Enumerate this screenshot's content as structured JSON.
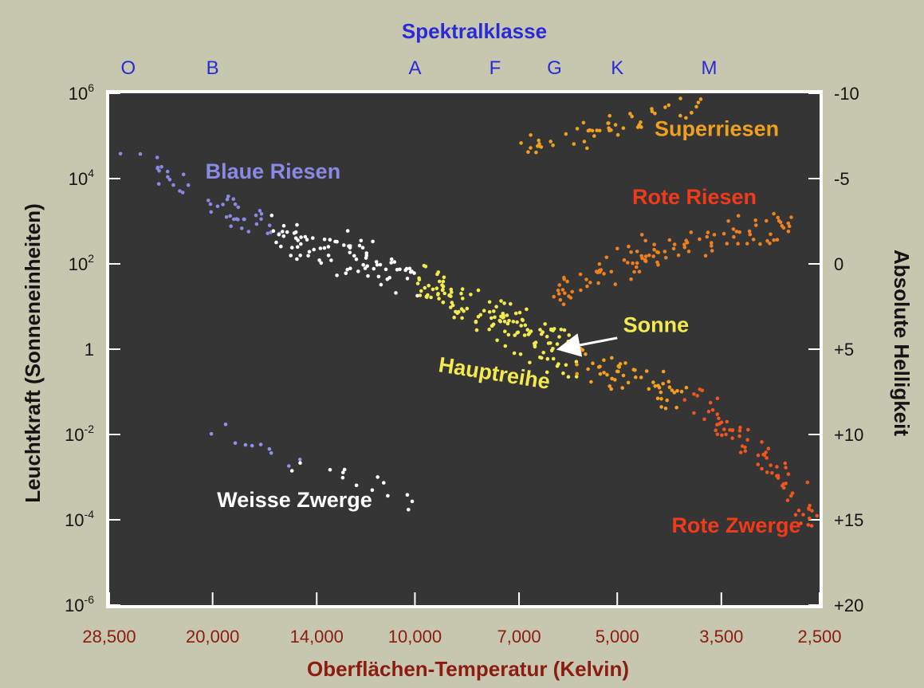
{
  "chart_data": {
    "type": "scatter",
    "title": "Spektralklasse",
    "xlabel": "Oberflächen-Temperatur (Kelvin)",
    "ylabel": "Leuchtkraft (Sonneneinheiten)",
    "y2label": "Absolute Helligkeit",
    "x_scale": "log, reversed",
    "xlim": [
      28500,
      2500
    ],
    "y_scale": "log",
    "ylim": [
      1e-06,
      1000000.0
    ],
    "y2lim": [
      20,
      -10
    ],
    "grid": false,
    "background": "#353535",
    "x_ticks": [
      {
        "value": 28500,
        "label": "28,500"
      },
      {
        "value": 20000,
        "label": "20,000"
      },
      {
        "value": 14000,
        "label": "14,000"
      },
      {
        "value": 10000,
        "label": "10,000"
      },
      {
        "value": 7000,
        "label": "7,000"
      },
      {
        "value": 5000,
        "label": "5,000"
      },
      {
        "value": 3500,
        "label": "3,500"
      },
      {
        "value": 2500,
        "label": "2,500"
      }
    ],
    "y_ticks": [
      {
        "value": 1000000.0,
        "base": "10",
        "exp": "6"
      },
      {
        "value": 10000.0,
        "base": "10",
        "exp": "4"
      },
      {
        "value": 100.0,
        "base": "10",
        "exp": "2"
      },
      {
        "value": 1,
        "base": "1",
        "exp": ""
      },
      {
        "value": 0.01,
        "base": "10",
        "exp": "-2"
      },
      {
        "value": 0.0001,
        "base": "10",
        "exp": "-4"
      },
      {
        "value": 1e-06,
        "base": "10",
        "exp": "-6"
      }
    ],
    "y2_ticks": [
      {
        "value": -10,
        "label": "-10"
      },
      {
        "value": -5,
        "label": "-5"
      },
      {
        "value": 0,
        "label": "0"
      },
      {
        "value": 5,
        "label": "+5"
      },
      {
        "value": 10,
        "label": "+10"
      },
      {
        "value": 15,
        "label": "+15"
      },
      {
        "value": 20,
        "label": "+20"
      }
    ],
    "spectral_classes": [
      {
        "label": "O",
        "temp": 26700
      },
      {
        "label": "B",
        "temp": 20000
      },
      {
        "label": "A",
        "temp": 10000
      },
      {
        "label": "F",
        "temp": 7600
      },
      {
        "label": "G",
        "temp": 6200
      },
      {
        "label": "K",
        "temp": 5000
      },
      {
        "label": "M",
        "temp": 3650
      }
    ],
    "regions": [
      {
        "name": "Superriesen",
        "color": "#f0a020",
        "path": [
          [
            7000,
            30000.0
          ],
          [
            6200,
            70000.0
          ],
          [
            5400,
            130000.0
          ],
          [
            4600,
            250000.0
          ],
          [
            4000,
            500000.0
          ],
          [
            3700,
            600000.0
          ]
        ],
        "spread": 0.4,
        "count": 55
      },
      {
        "name": "Rote Riesen",
        "color": "#ee8020",
        "path": [
          [
            6200,
            15
          ],
          [
            5600,
            40
          ],
          [
            5000,
            90
          ],
          [
            4500,
            180
          ],
          [
            4000,
            300
          ],
          [
            3500,
            450
          ],
          [
            3100,
            700
          ],
          [
            2800,
            1000
          ]
        ],
        "spread": 0.5,
        "count": 110
      },
      {
        "name": "Blaue Riesen",
        "color": "#8a8ae6",
        "path": [
          [
            27500,
            40000.0
          ],
          [
            24000,
            15000.0
          ],
          [
            21000,
            5000.0
          ],
          [
            18500,
            1500.0
          ],
          [
            16000,
            600
          ]
        ],
        "spread": 0.45,
        "count": 45
      },
      {
        "name": "Hauptreihe",
        "color": "#ffffff",
        "path": [
          [
            16000,
            500
          ],
          [
            14000,
            250
          ],
          [
            12000,
            120
          ],
          [
            10000,
            40
          ]
        ],
        "spread": 0.6,
        "count": 85
      },
      {
        "name": "Hauptreihe",
        "color": "#f3ea50",
        "path": [
          [
            10000,
            40
          ],
          [
            8500,
            12
          ],
          [
            7600,
            6
          ],
          [
            7000,
            3
          ],
          [
            6200,
            1
          ],
          [
            5800,
            0.6
          ]
        ],
        "spread": 0.65,
        "count": 150
      },
      {
        "name": "Hauptreihe",
        "color": "#f3a020",
        "path": [
          [
            5800,
            0.6
          ],
          [
            5000,
            0.3
          ],
          [
            4400,
            0.15
          ],
          [
            4000,
            0.08
          ]
        ],
        "spread": 0.5,
        "count": 55
      },
      {
        "name": "Rote Zwerge",
        "color": "#ee5520",
        "path": [
          [
            4000,
            0.08
          ],
          [
            3500,
            0.02
          ],
          [
            3100,
            0.004
          ],
          [
            2800,
            0.0008
          ],
          [
            2550,
            0.0001
          ]
        ],
        "spread": 0.45,
        "count": 75
      },
      {
        "name": "Weisse Zwerge",
        "color": "#9090ee",
        "path": [
          [
            19500,
            0.015
          ],
          [
            17000,
            0.005
          ],
          [
            15000,
            0.002
          ]
        ],
        "spread": 0.3,
        "count": 10
      },
      {
        "name": "Weisse Zwerge",
        "color": "#ffffff",
        "path": [
          [
            15000,
            0.002
          ],
          [
            13000,
            0.0015
          ],
          [
            11500,
            0.0006
          ],
          [
            10000,
            0.0002
          ]
        ],
        "spread": 0.3,
        "count": 14
      }
    ],
    "annotations": [
      {
        "text": "Superriesen",
        "x": 4400,
        "y": 100000.0,
        "color": "#f0a020",
        "rotate": 0
      },
      {
        "text": "Rote Riesen",
        "x": 4750,
        "y": 2500.0,
        "color": "#f03a1a",
        "rotate": 0
      },
      {
        "text": "Blaue Riesen",
        "x": 20500,
        "y": 10000.0,
        "color": "#8a8ae6",
        "rotate": 0
      },
      {
        "text": "Hauptreihe",
        "x": 9250,
        "y": 0.3,
        "color": "#f3ea50",
        "rotate": 9
      },
      {
        "text": "Sonne",
        "x": 4900,
        "y": 2.5,
        "color": "#f3ea50",
        "rotate": 0
      },
      {
        "text": "Weisse Zwerge",
        "x": 19700,
        "y": 0.0002,
        "color": "#ffffff",
        "rotate": 0
      },
      {
        "text": "Rote Zwerge",
        "x": 4150,
        "y": 5e-05,
        "color": "#f03a1a",
        "rotate": 0
      }
    ],
    "sun": {
      "label": "Sonne",
      "x": 6000,
      "y": 1,
      "arrow_from_x": 5000,
      "arrow_from_y": 2.0
    }
  }
}
